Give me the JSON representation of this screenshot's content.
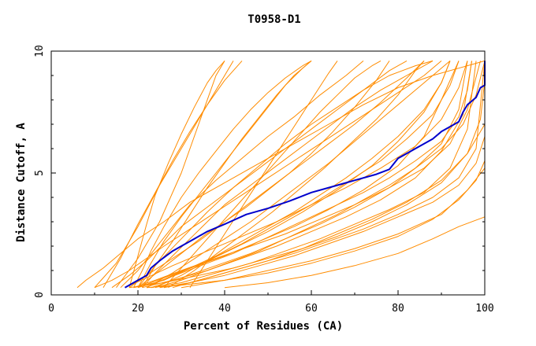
{
  "chart_data": {
    "type": "line",
    "title": "T0958-D1",
    "xlabel": "Percent of Residues (CA)",
    "ylabel": "Distance Cutoff, A",
    "xlim": [
      0,
      100
    ],
    "ylim": [
      0,
      10
    ],
    "xticks": [
      0,
      20,
      40,
      60,
      80,
      100
    ],
    "yticks": [
      0,
      5,
      10
    ],
    "grid": false,
    "highlight_color": "#0000cc",
    "background_color": "#ff8c00",
    "series": [
      {
        "role": "highlight",
        "x": [
          17,
          20,
          22,
          23,
          25,
          28,
          30,
          33,
          36,
          40,
          45,
          50,
          55,
          60,
          65,
          70,
          75,
          78,
          80,
          85,
          88,
          90,
          94,
          95,
          96,
          98,
          99,
          100,
          100
        ],
        "y": [
          0.3,
          0.6,
          0.8,
          1.1,
          1.4,
          1.8,
          2.0,
          2.3,
          2.6,
          2.9,
          3.3,
          3.55,
          3.85,
          4.2,
          4.45,
          4.7,
          4.95,
          5.15,
          5.6,
          6.1,
          6.4,
          6.7,
          7.1,
          7.5,
          7.8,
          8.1,
          8.5,
          8.6,
          9.6
        ]
      },
      {
        "role": "other",
        "x": [
          19,
          21,
          23,
          26,
          30,
          34,
          38,
          42,
          46,
          50,
          54,
          58,
          60
        ],
        "y": [
          0.3,
          1.0,
          1.8,
          2.8,
          4.0,
          5.0,
          5.9,
          6.8,
          7.6,
          8.3,
          8.9,
          9.4,
          9.6
        ]
      },
      {
        "role": "other",
        "x": [
          15,
          20,
          25,
          30,
          34,
          38,
          40
        ],
        "y": [
          0.3,
          1.5,
          3.0,
          5.0,
          7.0,
          9.0,
          9.6
        ]
      },
      {
        "role": "other",
        "x": [
          10,
          15,
          20,
          25,
          30,
          35,
          40,
          42
        ],
        "y": [
          0.3,
          1.3,
          2.8,
          4.5,
          6.0,
          7.5,
          9.0,
          9.6
        ]
      },
      {
        "role": "other",
        "x": [
          21,
          24,
          28,
          32,
          36,
          40,
          44,
          48,
          52,
          56,
          60
        ],
        "y": [
          0.3,
          1.2,
          2.2,
          3.3,
          4.4,
          5.4,
          6.4,
          7.3,
          8.2,
          9.0,
          9.6
        ]
      },
      {
        "role": "other",
        "x": [
          20,
          25,
          30,
          35,
          40,
          45,
          50,
          55,
          60,
          65,
          70,
          75,
          78
        ],
        "y": [
          0.3,
          1.0,
          1.7,
          2.4,
          3.0,
          3.6,
          4.3,
          5.0,
          5.8,
          6.7,
          7.7,
          8.8,
          9.6
        ]
      },
      {
        "role": "other",
        "x": [
          18,
          22,
          28,
          34,
          40,
          46,
          52,
          58,
          64,
          70,
          76,
          82,
          86
        ],
        "y": [
          0.3,
          0.8,
          1.5,
          2.2,
          3.0,
          3.8,
          4.6,
          5.4,
          6.2,
          7.0,
          7.9,
          8.9,
          9.6
        ]
      },
      {
        "role": "other",
        "x": [
          22,
          28,
          35,
          42,
          50,
          58,
          66,
          74,
          80,
          86,
          90,
          92
        ],
        "y": [
          0.3,
          0.8,
          1.3,
          1.9,
          2.6,
          3.4,
          4.3,
          5.3,
          6.3,
          7.5,
          8.7,
          9.6
        ]
      },
      {
        "role": "other",
        "x": [
          20,
          26,
          32,
          40,
          48,
          56,
          64,
          72,
          80,
          86,
          90,
          94
        ],
        "y": [
          0.3,
          0.7,
          1.1,
          1.6,
          2.2,
          2.8,
          3.5,
          4.3,
          5.3,
          6.5,
          8.0,
          9.6
        ]
      },
      {
        "role": "other",
        "x": [
          21,
          28,
          36,
          44,
          52,
          60,
          68,
          76,
          84,
          90,
          95,
          97
        ],
        "y": [
          0.3,
          0.6,
          1.0,
          1.5,
          2.0,
          2.6,
          3.2,
          3.9,
          4.8,
          5.9,
          7.4,
          9.6
        ]
      },
      {
        "role": "other",
        "x": [
          23,
          30,
          38,
          46,
          54,
          62,
          70,
          78,
          86,
          92,
          96,
          98
        ],
        "y": [
          0.3,
          0.5,
          0.9,
          1.3,
          1.8,
          2.3,
          2.9,
          3.5,
          4.2,
          5.2,
          6.8,
          9.6
        ]
      },
      {
        "role": "other",
        "x": [
          25,
          32,
          40,
          48,
          56,
          64,
          72,
          80,
          88,
          94,
          98,
          100,
          100
        ],
        "y": [
          0.3,
          0.5,
          0.8,
          1.2,
          1.6,
          2.1,
          2.6,
          3.2,
          3.8,
          4.5,
          5.4,
          6.5,
          9.6
        ]
      },
      {
        "role": "other",
        "x": [
          19,
          24,
          30,
          38,
          46,
          54,
          62,
          70,
          78,
          86,
          92,
          96,
          99
        ],
        "y": [
          0.3,
          0.6,
          1.0,
          1.5,
          2.0,
          2.5,
          3.1,
          3.7,
          4.4,
          5.2,
          6.2,
          7.6,
          9.6
        ]
      },
      {
        "role": "other",
        "x": [
          17,
          22,
          28,
          36,
          44,
          52,
          60,
          68,
          76,
          84,
          90,
          94,
          96
        ],
        "y": [
          0.3,
          0.7,
          1.2,
          1.8,
          2.4,
          3.0,
          3.7,
          4.4,
          5.2,
          6.1,
          7.2,
          8.5,
          9.6
        ]
      },
      {
        "role": "other",
        "x": [
          24,
          30,
          36,
          44,
          52,
          60,
          68,
          76,
          82,
          88,
          92,
          94
        ],
        "y": [
          0.3,
          0.8,
          1.4,
          2.1,
          2.9,
          3.7,
          4.6,
          5.5,
          6.4,
          7.4,
          8.6,
          9.6
        ]
      },
      {
        "role": "other",
        "x": [
          26,
          32,
          40,
          48,
          56,
          64,
          72,
          80,
          88,
          94,
          98,
          100
        ],
        "y": [
          0.3,
          0.5,
          0.9,
          1.3,
          1.7,
          2.2,
          2.7,
          3.3,
          4.0,
          4.8,
          6.0,
          9.6
        ]
      },
      {
        "role": "other",
        "x": [
          30,
          40,
          50,
          60,
          70,
          80,
          90,
          96,
          100
        ],
        "y": [
          0.3,
          0.6,
          1.0,
          1.4,
          1.9,
          2.5,
          3.3,
          4.3,
          5.2
        ]
      },
      {
        "role": "other",
        "x": [
          40,
          50,
          60,
          70,
          80,
          88,
          94,
          100
        ],
        "y": [
          0.3,
          0.5,
          0.8,
          1.2,
          1.7,
          2.3,
          2.8,
          3.2
        ]
      },
      {
        "role": "other",
        "x": [
          6,
          8,
          12,
          16,
          20,
          26,
          32,
          40,
          48,
          56,
          64,
          72,
          80,
          88,
          94,
          98,
          100
        ],
        "y": [
          0.3,
          0.6,
          1.1,
          1.7,
          2.3,
          3.0,
          3.8,
          4.6,
          5.4,
          6.2,
          7.0,
          7.8,
          8.5,
          9.0,
          9.3,
          9.5,
          9.6
        ]
      },
      {
        "role": "other",
        "x": [
          12,
          16,
          20,
          24,
          28,
          32,
          36,
          40,
          44
        ],
        "y": [
          0.3,
          1.5,
          2.9,
          4.2,
          5.5,
          6.7,
          7.8,
          8.8,
          9.6
        ]
      },
      {
        "role": "other",
        "x": [
          18,
          20,
          22,
          24,
          27,
          30,
          33,
          36,
          38,
          40
        ],
        "y": [
          0.3,
          1.6,
          2.9,
          4.1,
          5.4,
          6.6,
          7.7,
          8.7,
          9.2,
          9.6
        ]
      },
      {
        "role": "other",
        "x": [
          20,
          24,
          30,
          36,
          42,
          48,
          54,
          60,
          66,
          72,
          78,
          84,
          88
        ],
        "y": [
          0.3,
          1.2,
          2.3,
          3.4,
          4.4,
          5.3,
          6.2,
          7.0,
          7.7,
          8.4,
          9.0,
          9.4,
          9.6
        ]
      },
      {
        "role": "other",
        "x": [
          22,
          28,
          34,
          40,
          46,
          52,
          58,
          64,
          70,
          76,
          82,
          88,
          92
        ],
        "y": [
          0.3,
          0.9,
          1.6,
          2.3,
          3.0,
          3.8,
          4.6,
          5.4,
          6.3,
          7.2,
          8.1,
          9.0,
          9.6
        ]
      },
      {
        "role": "other",
        "x": [
          20,
          26,
          32,
          38,
          44,
          50,
          56,
          62,
          68,
          74,
          80,
          86,
          90,
          92
        ],
        "y": [
          0.3,
          0.6,
          1.1,
          1.6,
          2.2,
          2.8,
          3.4,
          4.1,
          4.8,
          5.6,
          6.5,
          7.6,
          8.7,
          9.6
        ]
      },
      {
        "role": "other",
        "x": [
          23,
          30,
          38,
          46,
          54,
          62,
          70,
          78,
          84,
          90,
          94,
          96
        ],
        "y": [
          0.3,
          0.7,
          1.2,
          1.7,
          2.3,
          2.9,
          3.6,
          4.4,
          5.2,
          6.2,
          7.6,
          9.6
        ]
      },
      {
        "role": "other",
        "x": [
          28,
          34,
          42,
          50,
          58,
          66,
          74,
          82,
          90,
          96,
          100
        ],
        "y": [
          0.3,
          0.6,
          1.0,
          1.4,
          1.9,
          2.5,
          3.1,
          3.8,
          4.7,
          5.8,
          7.0
        ]
      },
      {
        "role": "other",
        "x": [
          16,
          20,
          24,
          28,
          32,
          38,
          44,
          50,
          56,
          62,
          68,
          72
        ],
        "y": [
          0.3,
          1.0,
          1.9,
          2.8,
          3.7,
          4.7,
          5.6,
          6.5,
          7.3,
          8.2,
          9.0,
          9.6
        ]
      },
      {
        "role": "other",
        "x": [
          14,
          18,
          22,
          26,
          30,
          36,
          42,
          48,
          54,
          60,
          66,
          72,
          78,
          82
        ],
        "y": [
          0.3,
          0.8,
          1.4,
          2.1,
          2.8,
          3.6,
          4.4,
          5.2,
          6.0,
          6.8,
          7.6,
          8.4,
          9.2,
          9.6
        ]
      },
      {
        "role": "other",
        "x": [
          21,
          24,
          28,
          32,
          36,
          40,
          46,
          52,
          58,
          64,
          70,
          76,
          82,
          86,
          88
        ],
        "y": [
          0.3,
          0.9,
          1.6,
          2.3,
          3.0,
          3.7,
          4.5,
          5.3,
          6.1,
          6.9,
          7.7,
          8.4,
          9.0,
          9.4,
          9.6
        ]
      },
      {
        "role": "other",
        "x": [
          19,
          24,
          30,
          36,
          42,
          48,
          54,
          60,
          66,
          72,
          78,
          84,
          90,
          94,
          96,
          97
        ],
        "y": [
          0.3,
          0.5,
          0.9,
          1.3,
          1.7,
          2.2,
          2.7,
          3.2,
          3.7,
          4.2,
          4.8,
          5.5,
          6.3,
          7.3,
          8.4,
          9.6
        ]
      },
      {
        "role": "other",
        "x": [
          24,
          30,
          36,
          42,
          48,
          54,
          60,
          66,
          72,
          78,
          84,
          90,
          95,
          98,
          100
        ],
        "y": [
          0.3,
          0.6,
          1.0,
          1.4,
          1.8,
          2.3,
          2.8,
          3.3,
          3.9,
          4.5,
          5.2,
          6.0,
          7.0,
          8.2,
          9.6
        ]
      },
      {
        "role": "other",
        "x": [
          10,
          14,
          18,
          22,
          26,
          32,
          38,
          44,
          50,
          56,
          62,
          68,
          74,
          80,
          86,
          90
        ],
        "y": [
          0.3,
          0.6,
          1.0,
          1.5,
          2.0,
          2.7,
          3.4,
          4.1,
          4.8,
          5.5,
          6.2,
          6.9,
          7.6,
          8.3,
          9.0,
          9.6
        ]
      },
      {
        "role": "other",
        "x": [
          26,
          30,
          34,
          38,
          42,
          46,
          50,
          54,
          58,
          62,
          66,
          70,
          74,
          76
        ],
        "y": [
          0.3,
          1.1,
          1.9,
          2.7,
          3.5,
          4.3,
          5.1,
          5.9,
          6.7,
          7.5,
          8.2,
          8.9,
          9.4,
          9.6
        ]
      },
      {
        "role": "other",
        "x": [
          32,
          36,
          40,
          44,
          48,
          52,
          56,
          60,
          64,
          66
        ],
        "y": [
          0.3,
          1.4,
          2.5,
          3.6,
          4.7,
          5.8,
          6.9,
          8.0,
          9.1,
          9.6
        ]
      },
      {
        "role": "other",
        "x": [
          22,
          30,
          40,
          50,
          60,
          70,
          80,
          88,
          94,
          98,
          100
        ],
        "y": [
          0.3,
          0.4,
          0.6,
          0.9,
          1.3,
          1.8,
          2.4,
          3.1,
          3.9,
          4.7,
          5.5
        ]
      },
      {
        "role": "other",
        "x": [
          18,
          26,
          34,
          42,
          50,
          58,
          66,
          74,
          82,
          90,
          96,
          99,
          100
        ],
        "y": [
          0.3,
          0.5,
          0.8,
          1.1,
          1.5,
          1.9,
          2.4,
          3.0,
          3.7,
          4.6,
          5.8,
          7.2,
          8.8
        ]
      },
      {
        "role": "other",
        "x": [
          27,
          33,
          39,
          45,
          51,
          57,
          63,
          69,
          75,
          80,
          84,
          86
        ],
        "y": [
          0.3,
          1.0,
          1.8,
          2.6,
          3.4,
          4.3,
          5.2,
          6.2,
          7.2,
          8.2,
          9.2,
          9.6
        ]
      },
      {
        "role": "other",
        "x": [
          20,
          23,
          26,
          30,
          34,
          38,
          42,
          46,
          50,
          54,
          58,
          60
        ],
        "y": [
          0.3,
          1.3,
          2.2,
          3.2,
          4.1,
          5.0,
          5.9,
          6.8,
          7.7,
          8.6,
          9.3,
          9.6
        ]
      }
    ]
  }
}
